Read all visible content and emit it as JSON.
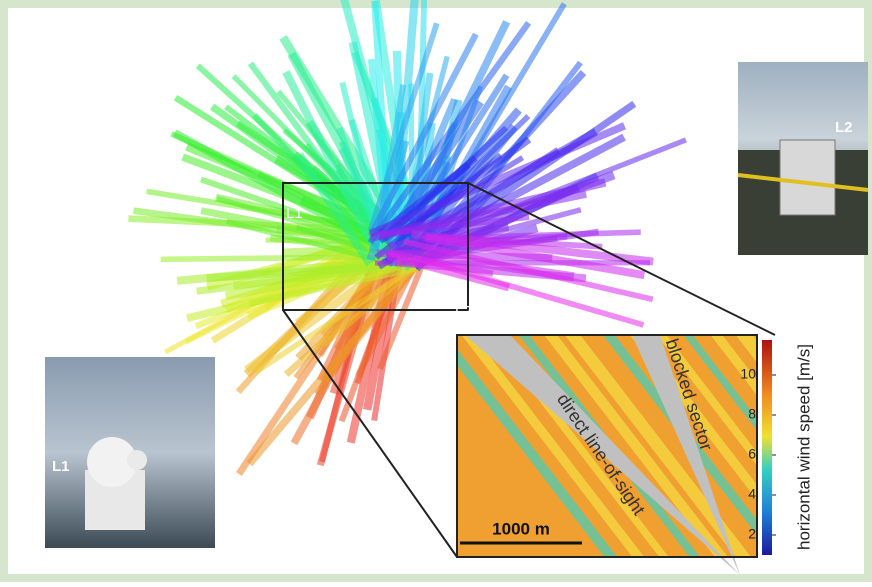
{
  "map": {
    "l1": "L1",
    "l2": "L2"
  },
  "photos": {
    "l1": "L1",
    "l2": "L2"
  },
  "inset": {
    "line_of_sight": "direct line-of-sight",
    "blocked": "blocked sector",
    "scale_bar": "1000 m"
  },
  "colorbar": {
    "label": "horizontal wind speed [m/s]",
    "lim": [
      1,
      11.75
    ],
    "ticks": [
      2,
      4,
      6,
      8,
      10
    ]
  }
}
